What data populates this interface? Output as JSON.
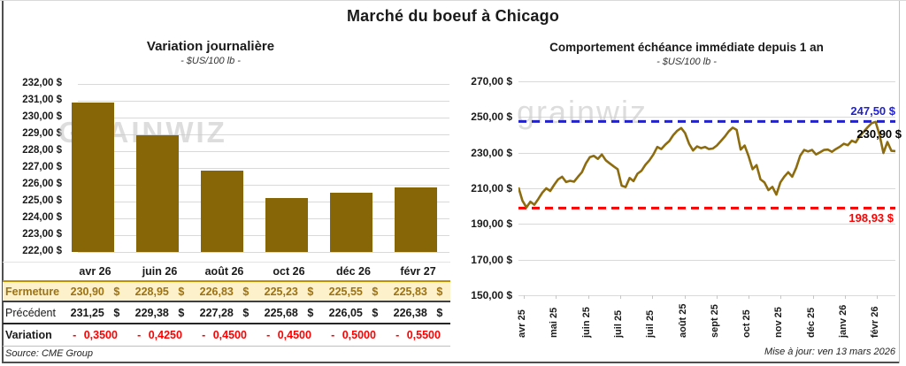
{
  "page": {
    "title": "Marché du boeuf à Chicago",
    "source": "Source: CME Group",
    "updated": "Mise à jour: ven 13 mars 2026"
  },
  "watermarks": {
    "left": "GRAINWIZ",
    "right": "grainwiz"
  },
  "colors": {
    "gold": "#876608",
    "line_gold": "#8d6c10",
    "fermeture_text": "#9c7213",
    "fermeture_bg": "#fdf1cc",
    "fermeture_border": "#bf9000",
    "variation_red": "#fe0000",
    "high_blue": "#2222cc",
    "low_red": "#fe0000",
    "grid": "#d9d9d9"
  },
  "chart_data": [
    {
      "id": "variation_journaliere",
      "type": "bar",
      "title": "Variation journalière",
      "subtitle": "- $US/100 lb -",
      "categories": [
        "avr 26",
        "juin 26",
        "août 26",
        "oct 26",
        "déc 26",
        "févr 27"
      ],
      "values": [
        230.9,
        228.95,
        226.83,
        225.23,
        225.55,
        225.83
      ],
      "ylim": [
        222,
        232
      ],
      "ytick_step": 1,
      "ytick_labels": [
        "232,00 $",
        "231,00 $",
        "230,00 $",
        "229,00 $",
        "228,00 $",
        "227,00 $",
        "226,00 $",
        "225,00 $",
        "224,00 $",
        "223,00 $",
        "222,00 $"
      ],
      "grid": true,
      "legend": "none"
    },
    {
      "id": "comportement_echeance_immediate",
      "type": "line",
      "title": "Comportement échéance immédiate depuis 1 an",
      "subtitle": "- $US/100 lb -",
      "x_labels": [
        "avr 25",
        "mai 25",
        "juin 25",
        "juil 25",
        "juil 25",
        "août 25",
        "sept 25",
        "oct 25",
        "nov 25",
        "déc 25",
        "janv 26",
        "févr 26"
      ],
      "ylim": [
        150,
        270
      ],
      "ytick_step": 20,
      "ytick_labels": [
        "270,00 $",
        "250,00 $",
        "230,00 $",
        "210,00 $",
        "190,00 $",
        "170,00 $",
        "150,00 $"
      ],
      "grid": true,
      "legend": "none",
      "high_line": {
        "value": 247.5,
        "label": "247,50 $"
      },
      "low_line": {
        "value": 198.93,
        "label": "198,93 $"
      },
      "last_point": {
        "value": 230.9,
        "label": "230,90 $"
      },
      "series": [
        {
          "name": "échéance immédiate",
          "values": [
            210.5,
            203,
            199.3,
            202.5,
            200.8,
            204,
            207.5,
            210,
            208.5,
            212,
            215,
            216.5,
            213.5,
            214.2,
            213.7,
            216.5,
            219,
            224,
            227.5,
            228.2,
            226.5,
            229,
            225.7,
            224,
            222.3,
            220.7,
            211.5,
            210.7,
            215.8,
            214,
            218.2,
            219.8,
            223.2,
            225.7,
            229,
            233.2,
            232,
            234.5,
            236.5,
            239.8,
            242.3,
            243.8,
            241,
            235,
            231.2,
            233.5,
            232.5,
            233.2,
            232,
            232.3,
            234,
            236.5,
            239,
            242,
            244,
            242.8,
            231.7,
            234,
            228,
            220.7,
            223,
            215,
            213.3,
            209,
            210.8,
            206.5,
            213.3,
            216.5,
            219,
            216.5,
            221.5,
            228.3,
            231.5,
            230.7,
            231.5,
            229,
            230.2,
            231.5,
            231.7,
            230.5,
            232,
            233.3,
            235,
            234.2,
            236.7,
            235.8,
            239.2,
            241.7,
            244.2,
            246.5,
            247.3,
            240,
            229.8,
            236,
            231,
            230.9
          ]
        }
      ]
    }
  ],
  "table": {
    "rows": [
      {
        "key": "fermeture",
        "label": "Fermeture",
        "values": [
          "230,90 $",
          "228,95 $",
          "226,83 $",
          "225,23 $",
          "225,55 $",
          "225,83 $"
        ]
      },
      {
        "key": "precedent",
        "label": "Précédent",
        "values": [
          "231,25 $",
          "229,38 $",
          "227,28 $",
          "225,68 $",
          "226,05 $",
          "226,38 $"
        ]
      },
      {
        "key": "variation",
        "label": "Variation",
        "values": [
          "- 0,3500",
          "- 0,4250",
          "- 0,4500",
          "- 0,4500",
          "- 0,5000",
          "- 0,5500"
        ]
      }
    ]
  }
}
